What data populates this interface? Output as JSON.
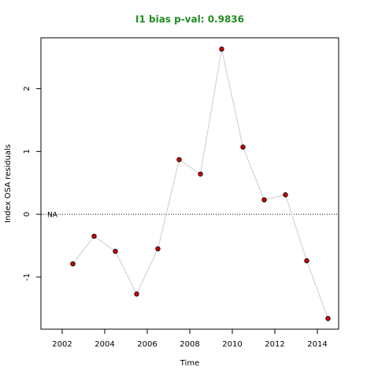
{
  "chart_data": {
    "type": "line",
    "title": "I1 bias p-val: 0.9836",
    "x_label": "Time",
    "y_label": "Index OSA residuals",
    "annotation": "NA",
    "hline": 0,
    "x": [
      2002.5,
      2003.5,
      2004.5,
      2005.5,
      2006.5,
      2007.5,
      2008.5,
      2009.5,
      2010.5,
      2011.5,
      2012.5,
      2013.5,
      2014.5
    ],
    "series": [
      {
        "color": "#cc0000",
        "values": [
          -0.79,
          -0.35,
          -0.59,
          -1.27,
          -0.55,
          0.87,
          0.64,
          2.63,
          1.07,
          0.23,
          0.31,
          -0.74,
          -1.66
        ]
      }
    ],
    "xlim": [
      2001,
      2015
    ],
    "xticks": [
      2002,
      2004,
      2006,
      2008,
      2010,
      2012,
      2014
    ],
    "ylim": [
      -1.83,
      2.81
    ],
    "yticks": [
      -1,
      0,
      1,
      2
    ]
  }
}
